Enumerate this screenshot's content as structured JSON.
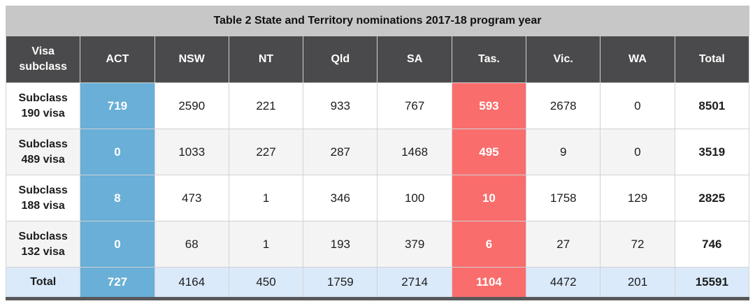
{
  "chart_data": {
    "type": "table",
    "title": "Table 2 State and Territory nominations 2017-18 program year",
    "columns": [
      "Visa subclass",
      "ACT",
      "NSW",
      "NT",
      "Qld",
      "SA",
      "Tas.",
      "Vic.",
      "WA",
      "Total"
    ],
    "rows": [
      {
        "label": "Subclass 190 visa",
        "values": [
          719,
          2590,
          221,
          933,
          767,
          593,
          2678,
          0,
          8501
        ]
      },
      {
        "label": "Subclass 489 visa",
        "values": [
          0,
          1033,
          227,
          287,
          1468,
          495,
          9,
          0,
          3519
        ]
      },
      {
        "label": "Subclass 188 visa",
        "values": [
          8,
          473,
          1,
          346,
          100,
          10,
          1758,
          129,
          2825
        ]
      },
      {
        "label": "Subclass 132 visa",
        "values": [
          0,
          68,
          1,
          193,
          379,
          6,
          27,
          72,
          746
        ]
      }
    ],
    "total_row": {
      "label": "Total",
      "values": [
        727,
        4164,
        450,
        1759,
        2714,
        1104,
        4472,
        201,
        15591
      ]
    },
    "highlights": {
      "blue_column": "ACT",
      "red_column": "Tas."
    },
    "layout": {
      "grid": true,
      "striped_rows": true,
      "bold_total_column": true
    }
  },
  "colors": {
    "title_bar_bg": "#c7c7c7",
    "header_bg": "#4a4a4c",
    "act_highlight_blue": "#69afd7",
    "tas_highlight_red": "#f96d6d",
    "row_stripe": "#f4f4f5",
    "total_row_bg": "#dbeafa",
    "grid_border": "#d2d2d4",
    "bottom_strip": "#58585a"
  }
}
